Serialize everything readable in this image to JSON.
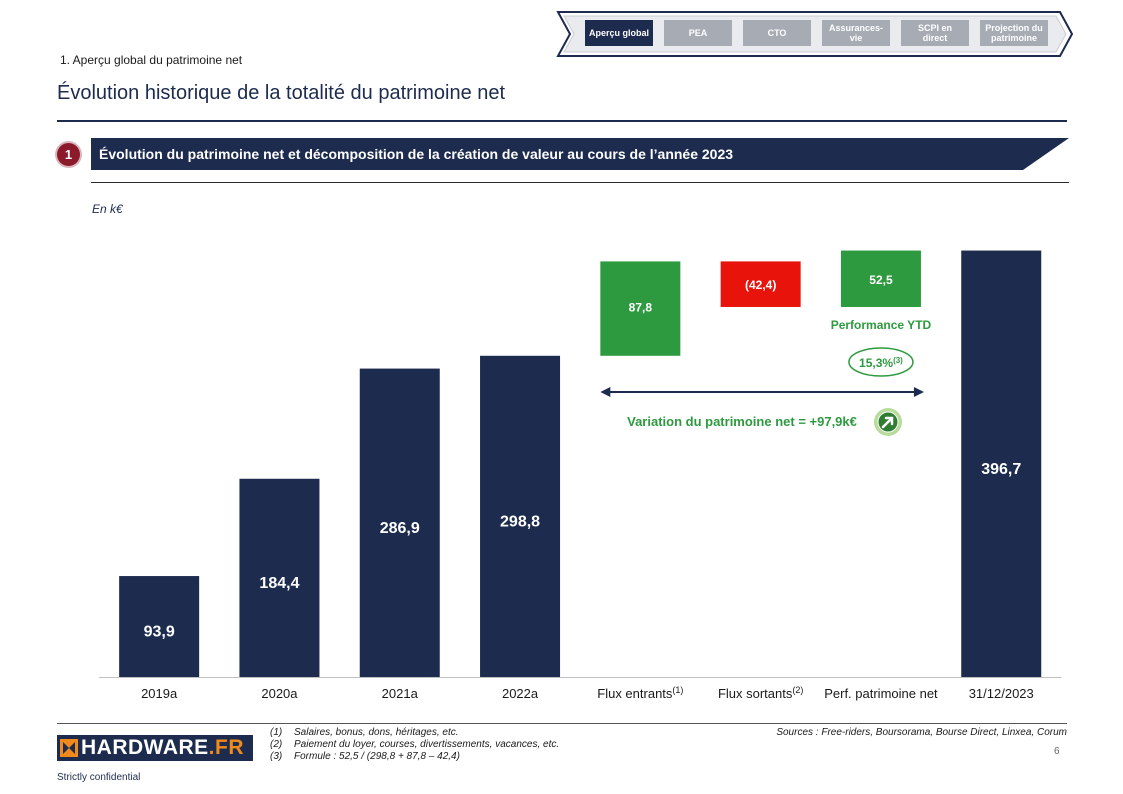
{
  "nav": {
    "tabs": [
      {
        "label": "Aperçu global",
        "active": true
      },
      {
        "label": "PEA",
        "active": false
      },
      {
        "label": "CTO",
        "active": false
      },
      {
        "label": "Assurances-vie",
        "active": false
      },
      {
        "label": "SCPI en direct",
        "active": false
      },
      {
        "label": "Projection du patrimoine",
        "active": false
      }
    ]
  },
  "breadcrumb": "1. Aperçu global du patrimoine net",
  "page_title": "Évolution historique de la totalité du patrimoine net",
  "section": {
    "number": "1",
    "title": "Évolution du patrimoine net et décomposition de la création de valeur au cours de l’année 2023"
  },
  "unit_label": "En k€",
  "chart_data": {
    "type": "bar",
    "subtype": "waterfall",
    "categories": [
      "2019a",
      "2020a",
      "2021a",
      "2022a",
      "Flux entrants",
      "Flux sortants",
      "Perf. patrimoine net",
      "31/12/2023"
    ],
    "category_footnotes": [
      "",
      "",
      "",
      "",
      "(1)",
      "(2)",
      "",
      ""
    ],
    "values": [
      93.9,
      184.4,
      286.9,
      298.8,
      87.8,
      -42.4,
      52.5,
      396.7
    ],
    "value_labels": [
      "93,9",
      "184,4",
      "286,9",
      "298,8",
      "87,8",
      "(42,4)",
      "52,5",
      "396,7"
    ],
    "bar_kind": [
      "total",
      "total",
      "total",
      "total",
      "delta",
      "delta",
      "delta",
      "total"
    ],
    "ylim": [
      0,
      400
    ],
    "grid": false,
    "annotations": {
      "performance_label": "Performance YTD",
      "performance_value": "15,3%",
      "performance_note": "(3)",
      "variation_label": "Variation du patrimoine net = +97,9k€"
    },
    "colors": {
      "total": "#1c2b4e",
      "positive": "#2e9a3f",
      "negative": "#e8140c",
      "annotation": "#2e9a3f"
    }
  },
  "footnotes": [
    {
      "num": "(1)",
      "text": "Salaires, bonus, dons, héritages, etc."
    },
    {
      "num": "(2)",
      "text": "Paiement du loyer, courses, divertissements, vacances, etc."
    },
    {
      "num": "(3)",
      "text": "Formule : 52,5 / (298,8 + 87,8 – 42,4)"
    }
  ],
  "sources": "Sources : Free-riders, Boursorama, Bourse Direct, Linxea, Corum",
  "page_number": "6",
  "confidential": "Strictly confidential",
  "logo": {
    "name": "HARDWARE",
    "tld": ".FR"
  }
}
